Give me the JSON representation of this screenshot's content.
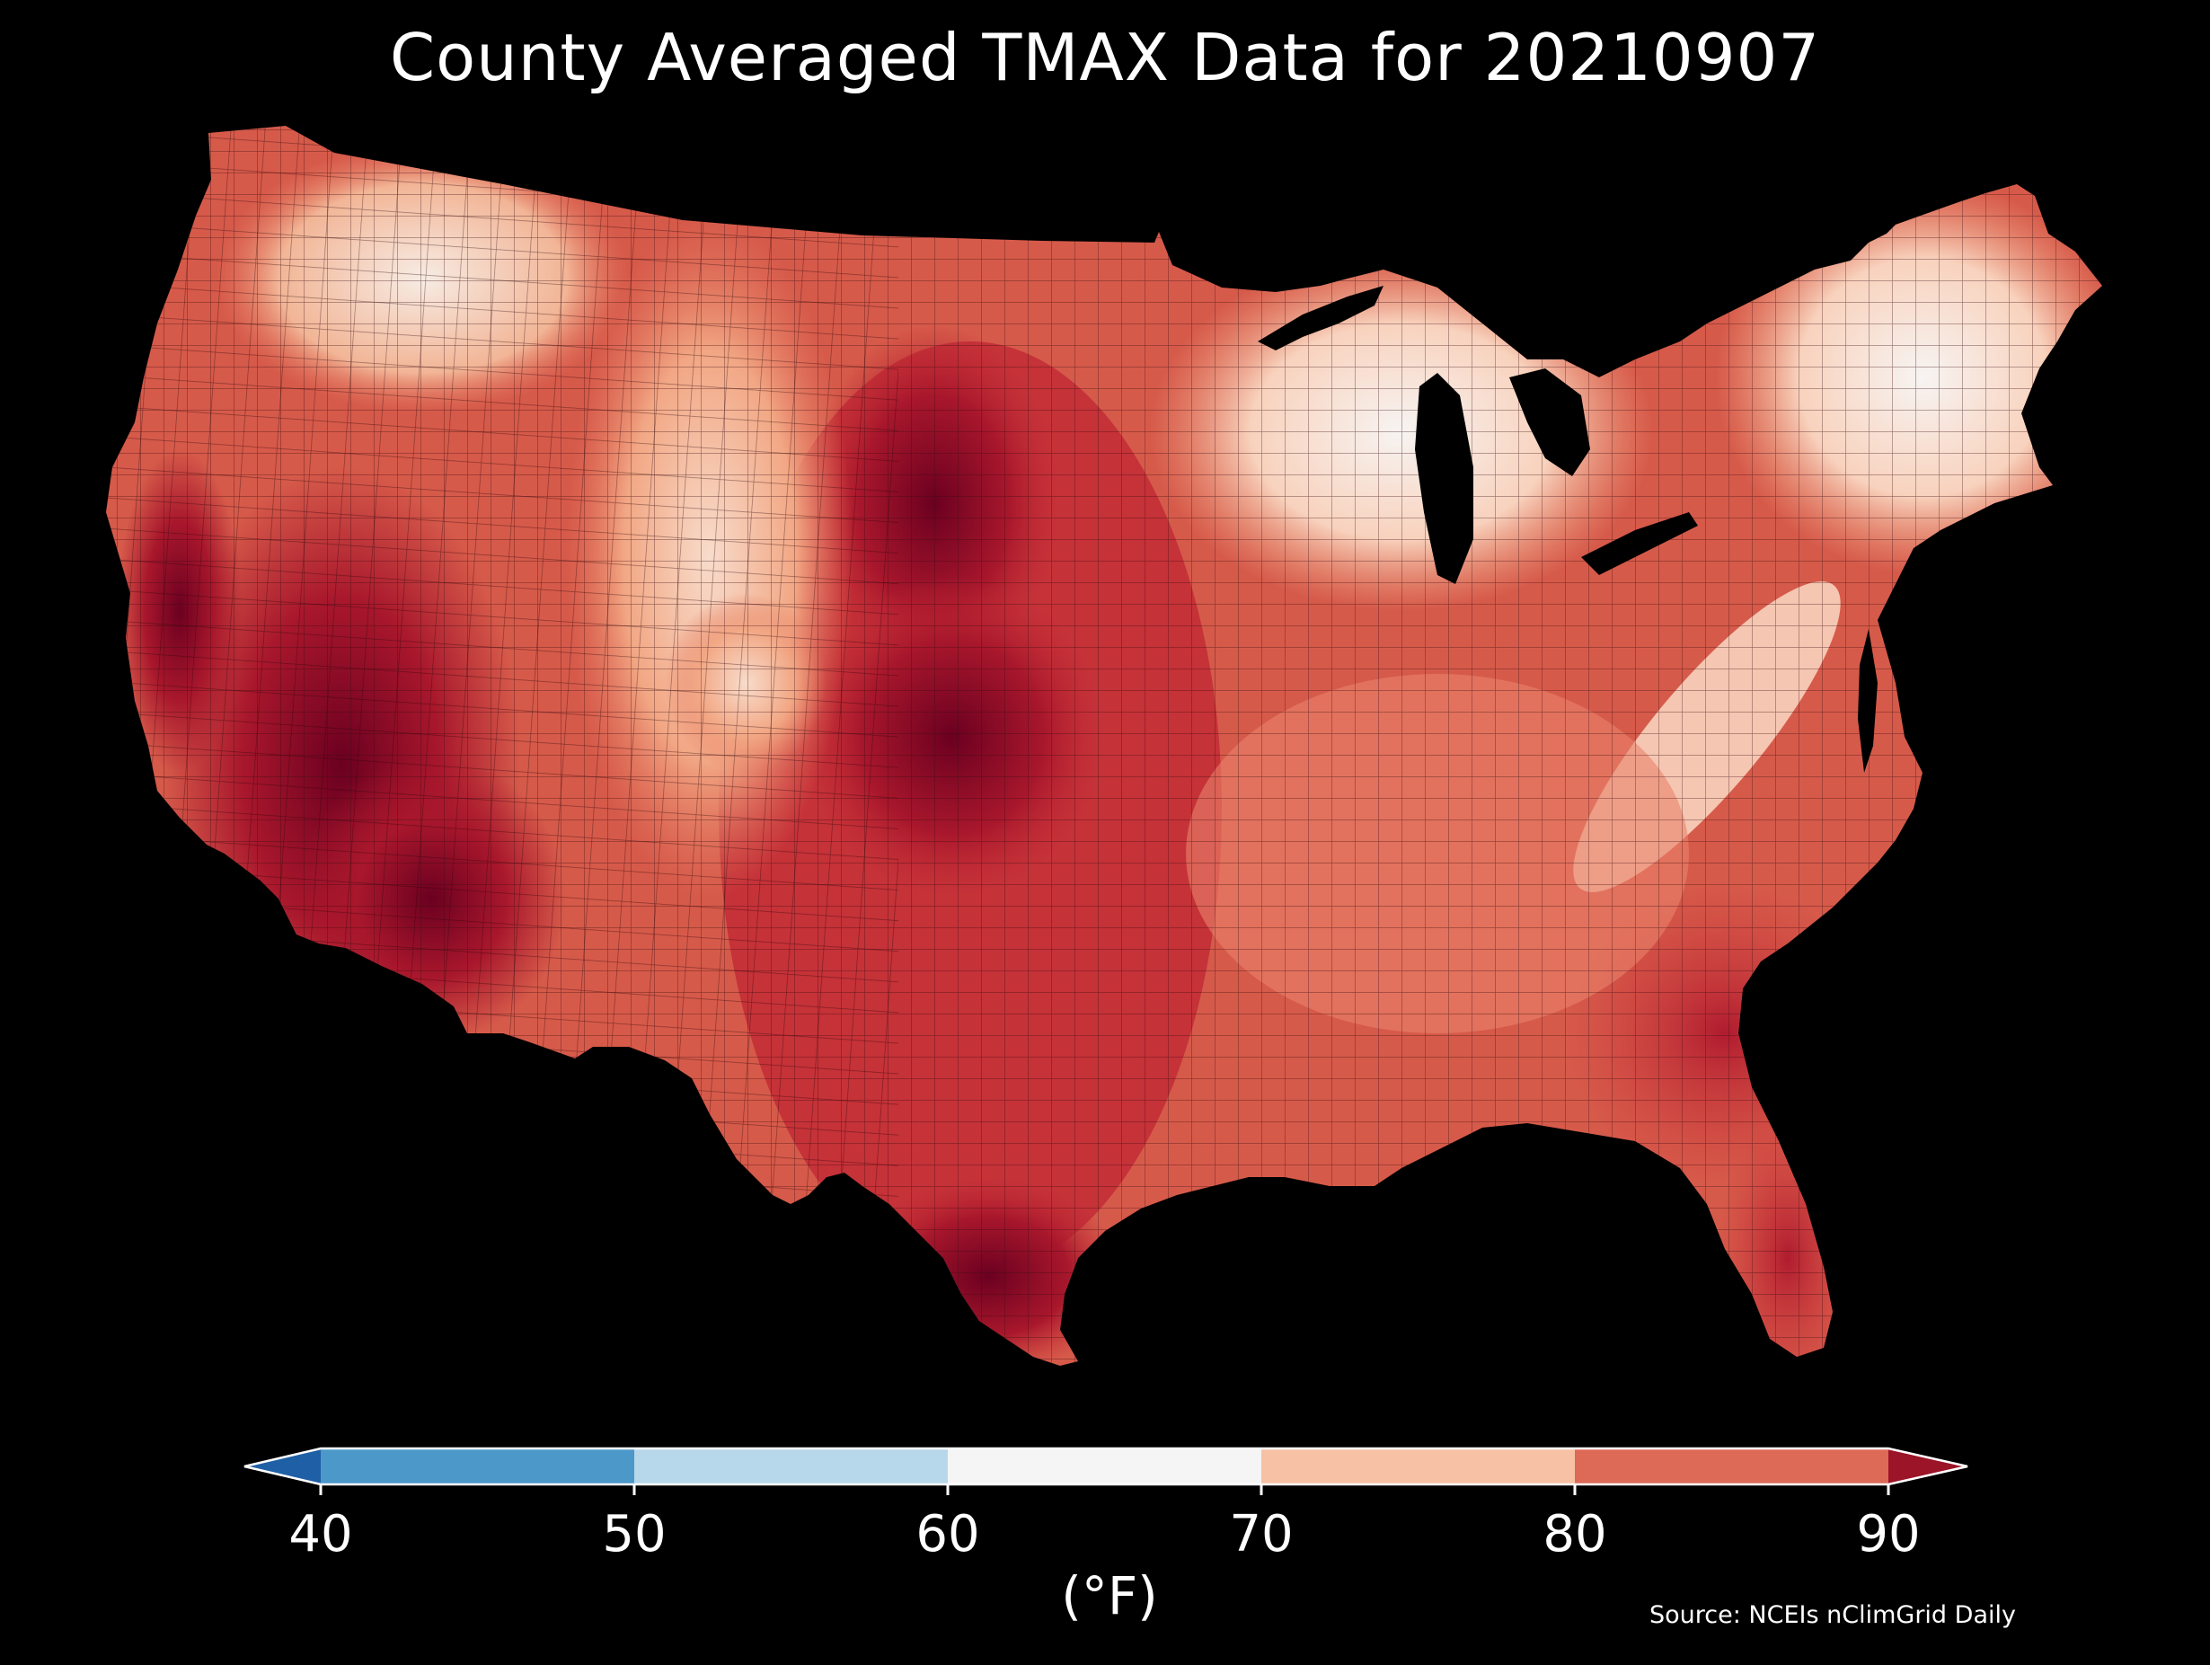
{
  "title": "County Averaged TMAX Data for 20210907",
  "source": "Source: NCEIs nClimGrid Daily",
  "legend": {
    "unit": "(°F)",
    "ticks": [
      "40",
      "50",
      "60",
      "70",
      "80",
      "90"
    ],
    "bins": [
      {
        "range": "<40",
        "color": "#1f5fa6"
      },
      {
        "range": "40-50",
        "color": "#4b98c9"
      },
      {
        "range": "50-60",
        "color": "#b7d8ea"
      },
      {
        "range": "60-70",
        "color": "#f5f5f5"
      },
      {
        "range": "70-80",
        "color": "#f7c1a5"
      },
      {
        "range": "80-90",
        "color": "#dc6a57"
      },
      {
        "range": ">90",
        "color": "#9b1427"
      }
    ]
  },
  "map": {
    "region": "Contiguous United States",
    "land_fill_dominant": "#d9584b",
    "colors": {
      "very_hot": "#6b0020",
      "hot": "#a8172c",
      "warm": "#cf3a3c",
      "mild_warm": "#e67b61",
      "mild": "#f2a784",
      "cool": "#f8d2bd",
      "coolest": "#f7f4f2",
      "water": "#000000"
    }
  }
}
